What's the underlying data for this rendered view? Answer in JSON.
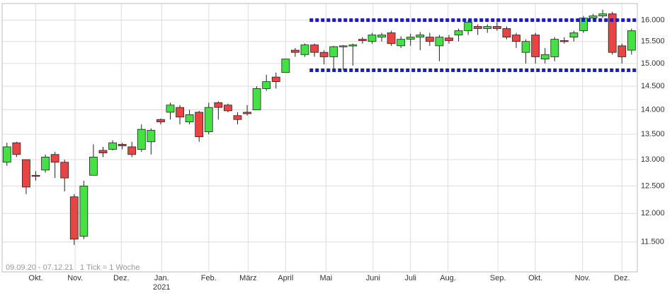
{
  "chart_data": {
    "type": "candlestick",
    "log_scale": true,
    "grid": true,
    "ylim": [
      11000,
      16400
    ],
    "xlim": [
      -0.5,
      65.6
    ],
    "yticks": [
      {
        "value": 11500,
        "label": "11.500"
      },
      {
        "value": 12000,
        "label": "12.000"
      },
      {
        "value": 12500,
        "label": "12.500"
      },
      {
        "value": 13000,
        "label": "13.000"
      },
      {
        "value": 13500,
        "label": "13.500"
      },
      {
        "value": 14000,
        "label": "14.000"
      },
      {
        "value": 14500,
        "label": "14.500"
      },
      {
        "value": 15000,
        "label": "15.000"
      },
      {
        "value": 15500,
        "label": "15.500"
      },
      {
        "value": 16000,
        "label": "16.000"
      }
    ],
    "xticks": [
      {
        "value": 3.0,
        "label": "Okt."
      },
      {
        "value": 7.1,
        "label": "Nov."
      },
      {
        "value": 11.9,
        "label": "Dez."
      },
      {
        "value": 16.1,
        "label": "Jan."
      },
      {
        "value": 21.0,
        "label": "Feb."
      },
      {
        "value": 25.1,
        "label": "März"
      },
      {
        "value": 29.0,
        "label": "April"
      },
      {
        "value": 33.2,
        "label": "Mai"
      },
      {
        "value": 38.1,
        "label": "Juni"
      },
      {
        "value": 42.0,
        "label": "Juli"
      },
      {
        "value": 45.9,
        "label": "Aug."
      },
      {
        "value": 51.1,
        "label": "Sep."
      },
      {
        "value": 55.0,
        "label": "Okt."
      },
      {
        "value": 59.9,
        "label": "Nov."
      },
      {
        "value": 64.0,
        "label": "Dez."
      }
    ],
    "year_labels": [
      {
        "value": 16.1,
        "label": "2021"
      }
    ],
    "annotations": [
      "09.09.20 - 07.12.21",
      "1 Tick = 1 Woche"
    ],
    "up_color": "#44e044",
    "down_color": "#e84444",
    "reference_lines": [
      {
        "value": 16000,
        "start": 31.5,
        "color": "#1a1acc"
      },
      {
        "value": 14850,
        "start": 31.5,
        "color": "#1a1acc"
      }
    ],
    "categories": [
      null,
      null,
      null,
      null,
      null,
      null,
      null,
      null,
      null,
      null,
      null,
      null,
      null,
      null,
      null,
      null,
      null,
      null,
      null,
      null,
      null,
      null,
      null,
      null,
      null,
      null,
      null,
      null,
      null,
      null,
      null,
      null,
      null,
      null,
      null,
      null,
      null,
      null,
      null,
      null,
      null,
      null,
      null,
      null,
      null,
      null,
      null,
      null,
      null,
      null,
      null,
      null,
      null,
      null,
      null,
      null,
      null,
      null,
      null,
      null,
      null,
      null,
      null,
      null,
      null,
      null
    ],
    "open": [
      12950,
      13330,
      13000,
      12700,
      12800,
      13100,
      12950,
      12300,
      11600,
      12700,
      13180,
      13200,
      13300,
      13250,
      13200,
      13350,
      13800,
      13950,
      14050,
      13750,
      13950,
      13550,
      14150,
      14100,
      13880,
      13950,
      14000,
      14450,
      14700,
      14800,
      15300,
      15200,
      15420,
      15250,
      15150,
      15380,
      15400,
      15550,
      15500,
      15600,
      15700,
      15400,
      15550,
      15600,
      15600,
      15400,
      15580,
      15650,
      15750,
      15850,
      15800,
      15850,
      15800,
      15650,
      15250,
      15650,
      15100,
      15150,
      15520,
      15600,
      15750,
      16050,
      16100,
      16150,
      15400,
      15300
    ],
    "high": [
      13330,
      13350,
      13000,
      12780,
      13100,
      13150,
      13000,
      12350,
      12600,
      13300,
      13250,
      13380,
      13330,
      13350,
      13700,
      13620,
      13820,
      14150,
      14100,
      14000,
      13980,
      14150,
      14180,
      14130,
      13950,
      14100,
      14500,
      14750,
      14800,
      15100,
      15350,
      15450,
      15450,
      15300,
      15400,
      15420,
      15450,
      15600,
      15700,
      15700,
      15750,
      15620,
      15680,
      15720,
      15700,
      15650,
      15650,
      15800,
      16000,
      15900,
      15900,
      15950,
      15850,
      15700,
      15550,
      15700,
      15350,
      15600,
      15600,
      15750,
      16100,
      16150,
      16250,
      16200,
      15450,
      15800
    ],
    "low": [
      12880,
      13050,
      12350,
      12600,
      12750,
      12650,
      12400,
      11450,
      11550,
      12700,
      13050,
      13180,
      13200,
      13050,
      13150,
      13100,
      13700,
      13800,
      13700,
      13700,
      13350,
      13500,
      13800,
      13950,
      13700,
      13880,
      14000,
      14400,
      14450,
      14800,
      15150,
      15150,
      15150,
      14980,
      14850,
      14850,
      14950,
      15450,
      15450,
      15500,
      15400,
      15350,
      15400,
      15300,
      15400,
      15050,
      15450,
      15500,
      15650,
      15650,
      15700,
      15750,
      15550,
      15350,
      15000,
      15000,
      15000,
      15050,
      15450,
      15500,
      15700,
      16000,
      16050,
      15200,
      15000,
      15200
    ],
    "close": [
      13250,
      13100,
      12480,
      12680,
      13050,
      12950,
      12650,
      11550,
      12500,
      13050,
      13130,
      13330,
      13270,
      13100,
      13600,
      13580,
      13750,
      14100,
      13850,
      13900,
      13450,
      14050,
      14050,
      13980,
      13800,
      13920,
      14450,
      14600,
      14600,
      15100,
      15250,
      15420,
      15250,
      15150,
      15380,
      15400,
      15420,
      15520,
      15650,
      15650,
      15450,
      15550,
      15600,
      15650,
      15500,
      15600,
      15520,
      15750,
      15950,
      15800,
      15850,
      15800,
      15600,
      15500,
      15500,
      15150,
      15200,
      15550,
      15500,
      15700,
      16050,
      16100,
      16150,
      15250,
      15150,
      15750
    ]
  }
}
